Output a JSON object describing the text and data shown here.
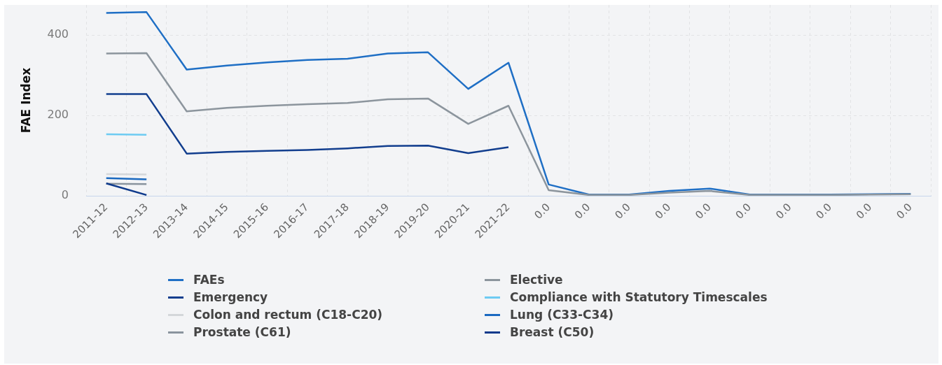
{
  "chart_data": {
    "type": "line",
    "ylabel": "FAE Index",
    "categories": [
      "2011-12",
      "2012-13",
      "2013-14",
      "2014-15",
      "2015-16",
      "2016-17",
      "2017-18",
      "2018-19",
      "2019-20",
      "2020-21",
      "2021-22",
      "0.0",
      "0.0",
      "0.0",
      "0.0",
      "0.0",
      "0.0",
      "0.0",
      "0.0",
      "0.0",
      "0.0"
    ],
    "series": [
      {
        "name": "FAEs",
        "color": "#1f6fc5",
        "values": [
          455,
          457,
          314,
          324,
          332,
          338,
          341,
          354,
          357,
          266,
          331,
          28,
          3,
          3,
          12,
          18,
          3,
          3,
          3,
          4,
          5
        ]
      },
      {
        "name": "Elective",
        "color": "#8c959d",
        "values": [
          354,
          355,
          210,
          219,
          224,
          228,
          231,
          240,
          242,
          179,
          224,
          14,
          2,
          2,
          8,
          12,
          2,
          2,
          2,
          3,
          4
        ]
      },
      {
        "name": "Emergency",
        "color": "#123e8e",
        "values": [
          253,
          253,
          105,
          109,
          112,
          114,
          118,
          124,
          125,
          106,
          121,
          null,
          null,
          null,
          null,
          null,
          null,
          null,
          null,
          null,
          null
        ]
      },
      {
        "name": "Compliance with Statutory Timescales",
        "color": "#6dcbf2",
        "values": [
          153,
          152,
          null,
          null,
          null,
          null,
          null,
          null,
          null,
          null,
          null,
          null,
          null,
          null,
          null,
          null,
          null,
          null,
          null,
          null,
          null
        ]
      },
      {
        "name": "Colon and rectum (C18-C20)",
        "color": "#d4d7da",
        "values": [
          54,
          53,
          null,
          null,
          null,
          null,
          null,
          null,
          null,
          null,
          null,
          null,
          null,
          null,
          null,
          null,
          null,
          null,
          null,
          null,
          null
        ]
      },
      {
        "name": "Lung (C33-C34)",
        "color": "#1a69c0",
        "values": [
          44,
          41,
          null,
          null,
          null,
          null,
          null,
          null,
          null,
          null,
          null,
          null,
          null,
          null,
          null,
          null,
          null,
          null,
          null,
          null,
          null
        ]
      },
      {
        "name": "Prostate (C61)",
        "color": "#8a949e",
        "values": [
          30,
          29,
          null,
          null,
          null,
          null,
          null,
          null,
          null,
          null,
          null,
          null,
          null,
          null,
          null,
          null,
          null,
          null,
          null,
          null,
          null
        ]
      },
      {
        "name": "Breast (C50)",
        "color": "#0e3a8c",
        "values": [
          31,
          2,
          null,
          null,
          null,
          null,
          null,
          null,
          null,
          null,
          null,
          null,
          null,
          null,
          null,
          null,
          null,
          null,
          null,
          null,
          null
        ]
      }
    ],
    "ylim": [
      0,
      475
    ],
    "yticks": [
      0,
      200,
      400
    ],
    "grid": true,
    "legend": "bottom",
    "marker": "none",
    "line_style": "solid"
  }
}
